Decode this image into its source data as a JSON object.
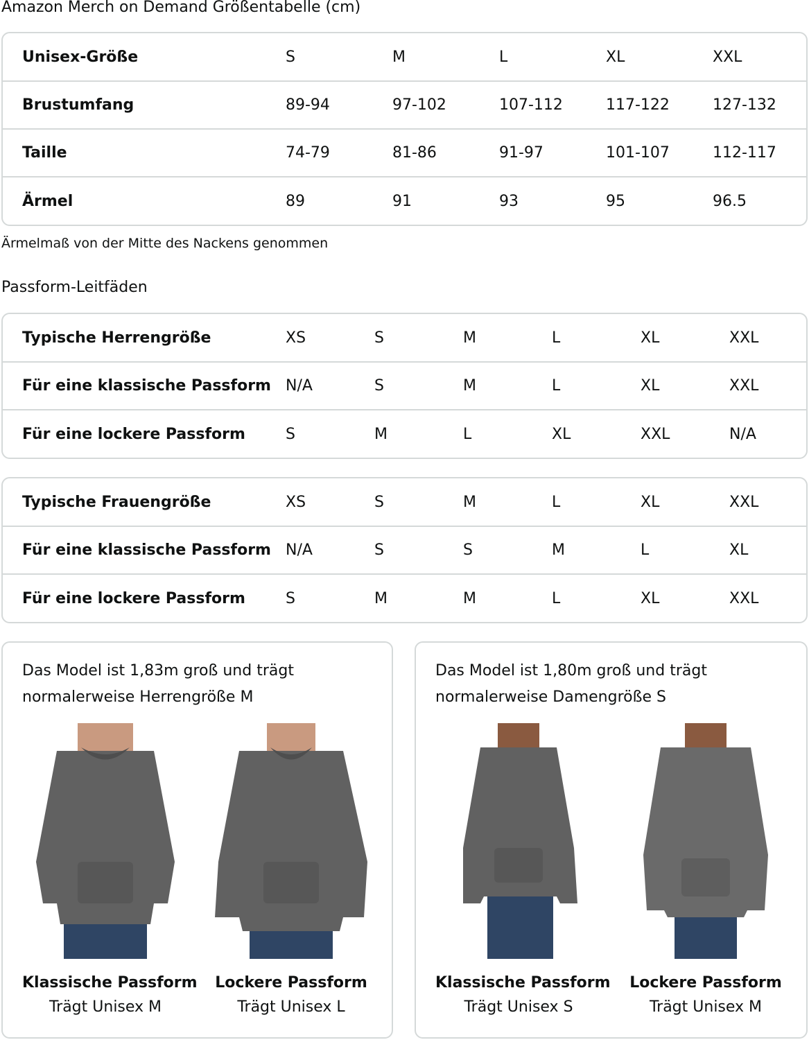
{
  "title": "Amazon Merch on Demand Größentabelle (cm)",
  "unisex": {
    "rows": [
      {
        "label": "Unisex-Größe",
        "values": [
          "S",
          "M",
          "L",
          "XL",
          "XXL"
        ]
      },
      {
        "label": "Brustumfang",
        "values": [
          "89-94",
          "97-102",
          "107-112",
          "117-122",
          "127-132"
        ]
      },
      {
        "label": "Taille",
        "values": [
          "74-79",
          "81-86",
          "91-97",
          "101-107",
          "112-117"
        ]
      },
      {
        "label": "Ärmel",
        "values": [
          "89",
          "91",
          "93",
          "95",
          "96.5"
        ]
      }
    ]
  },
  "note": "Ärmelmaß von der Mitte des Nackens genommen",
  "fit_title": "Passform-Leitfäden",
  "men": {
    "rows": [
      {
        "label": "Typische Herrengröße",
        "values": [
          "XS",
          "S",
          "M",
          "L",
          "XL",
          "XXL"
        ]
      },
      {
        "label": "Für eine klassische Passform",
        "values": [
          "N/A",
          "S",
          "M",
          "L",
          "XL",
          "XXL"
        ]
      },
      {
        "label": "Für eine lockere Passform",
        "values": [
          "S",
          "M",
          "L",
          "XL",
          "XXL",
          "N/A"
        ]
      }
    ]
  },
  "women": {
    "rows": [
      {
        "label": "Typische Frauengröße",
        "values": [
          "XS",
          "S",
          "M",
          "L",
          "XL",
          "XXL"
        ]
      },
      {
        "label": "Für eine klassische Passform",
        "values": [
          "N/A",
          "S",
          "S",
          "M",
          "L",
          "XL"
        ]
      },
      {
        "label": "Für eine lockere Passform",
        "values": [
          "S",
          "M",
          "M",
          "L",
          "XL",
          "XXL"
        ]
      }
    ]
  },
  "cards": [
    {
      "caption": [
        "Das Model ist 1,83m groß und trägt",
        "normalerweise Herrengröße M"
      ],
      "figures": [
        {
          "title": "Klassische Passform",
          "sub": "Trägt Unisex M"
        },
        {
          "title": "Lockere Passform",
          "sub": "Trägt Unisex L"
        }
      ]
    },
    {
      "caption": [
        "Das Model ist 1,80m groß und trägt",
        "normalerweise Damengröße S"
      ],
      "figures": [
        {
          "title": "Klassische Passform",
          "sub": "Trägt Unisex S"
        },
        {
          "title": "Lockere Passform",
          "sub": "Trägt Unisex M"
        }
      ]
    }
  ],
  "colors": {
    "hoodie": "#616161",
    "border": "#d5d9d9",
    "jeans": "#2f4564",
    "skin": "#c99a80"
  }
}
